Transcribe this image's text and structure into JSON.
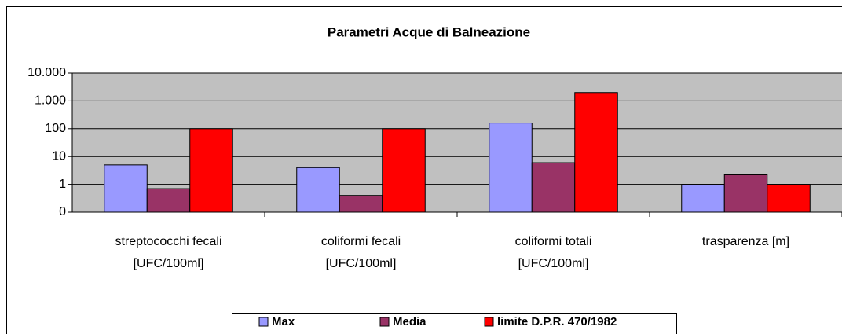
{
  "chart_data": {
    "type": "bar",
    "title": "Parametri Acque di Balneazione",
    "categories": [
      "streptococchi fecali\n[UFC/100ml]",
      "coliformi fecali\n[UFC/100ml]",
      "coliformi totali\n[UFC/100ml]",
      "trasparenza [m]"
    ],
    "series": [
      {
        "name": "Max",
        "color": "#9999ff",
        "values": [
          5,
          4,
          160,
          1
        ]
      },
      {
        "name": "Media",
        "color": "#993366",
        "values": [
          0.7,
          0.4,
          6,
          2.2
        ]
      },
      {
        "name": "limite D.P.R. 470/1982",
        "color": "#ff0000",
        "values": [
          100,
          100,
          2000,
          1
        ]
      }
    ],
    "log_scale": true,
    "ylim": [
      0.1,
      10000
    ],
    "yticks": [
      {
        "value": 0.1,
        "label": "0"
      },
      1,
      10,
      100,
      {
        "value": 1000,
        "label": "1.000"
      },
      {
        "value": 10000,
        "label": "10.000"
      }
    ],
    "grid": true,
    "legend": "bottom"
  }
}
